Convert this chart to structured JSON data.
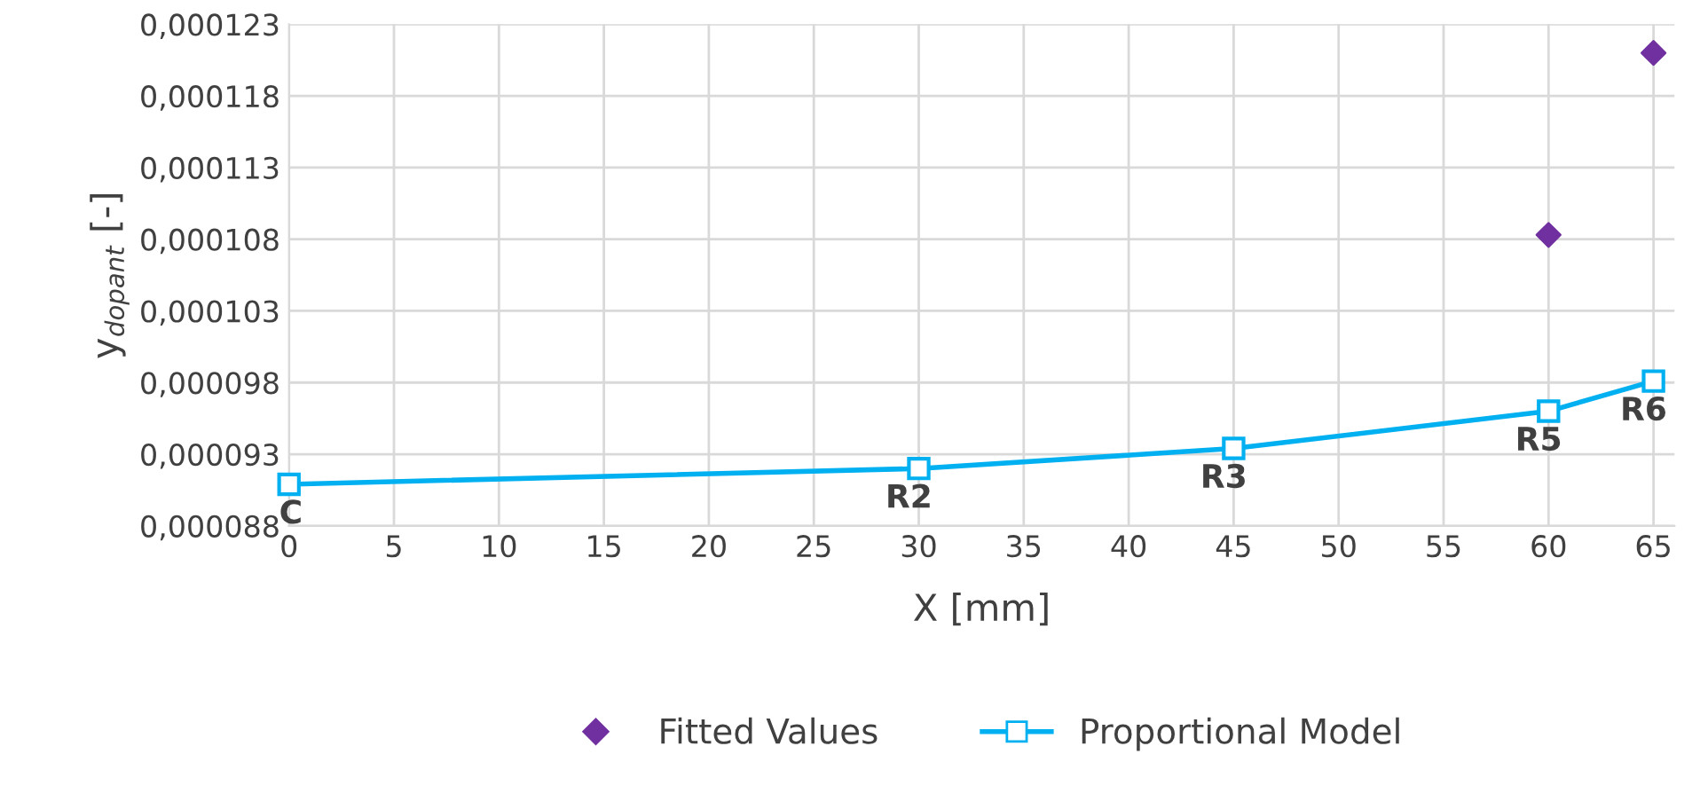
{
  "chart_data": {
    "type": "line",
    "xlabel": "X [mm]",
    "ylabel": "y$_{dopant}$ [-]",
    "xlim": [
      0,
      66
    ],
    "xticks": [
      0,
      5,
      10,
      15,
      20,
      25,
      30,
      35,
      40,
      45,
      50,
      55,
      60,
      65
    ],
    "ylim": [
      8.8e-05,
      0.000123
    ],
    "yticks": [
      {
        "value": 8.8e-05,
        "label": "0,000088"
      },
      {
        "value": 9.3e-05,
        "label": "0,000093"
      },
      {
        "value": 9.8e-05,
        "label": "0,000098"
      },
      {
        "value": 0.000103,
        "label": "0,000103"
      },
      {
        "value": 0.000108,
        "label": "0,000108"
      },
      {
        "value": 0.000113,
        "label": "0,000113"
      },
      {
        "value": 0.000118,
        "label": "0,000118"
      },
      {
        "value": 0.000123,
        "label": "0,000123"
      }
    ],
    "grid": true,
    "legend": "bottom",
    "series": [
      {
        "name": "Fitted Values",
        "type": "scatter",
        "marker": "diamond",
        "color": "#7030a0",
        "x": [
          60,
          65
        ],
        "values": [
          0.0001083,
          0.000121
        ]
      },
      {
        "name": "Proportional Model",
        "marker": "square",
        "line_style": "solid",
        "color": "#00b0f0",
        "x": [
          0,
          30,
          45,
          60,
          65
        ],
        "values": [
          9.09e-05,
          9.2e-05,
          9.34e-05,
          9.6e-05,
          9.81e-05
        ]
      }
    ],
    "annotations": [
      {
        "text": "C",
        "x": 0,
        "y": 9.09e-05
      },
      {
        "text": "R2",
        "x": 30,
        "y": 9.2e-05
      },
      {
        "text": "R3",
        "x": 45,
        "y": 9.34e-05
      },
      {
        "text": "R5",
        "x": 60,
        "y": 9.6e-05
      },
      {
        "text": "R6",
        "x": 65,
        "y": 9.81e-05
      }
    ]
  }
}
